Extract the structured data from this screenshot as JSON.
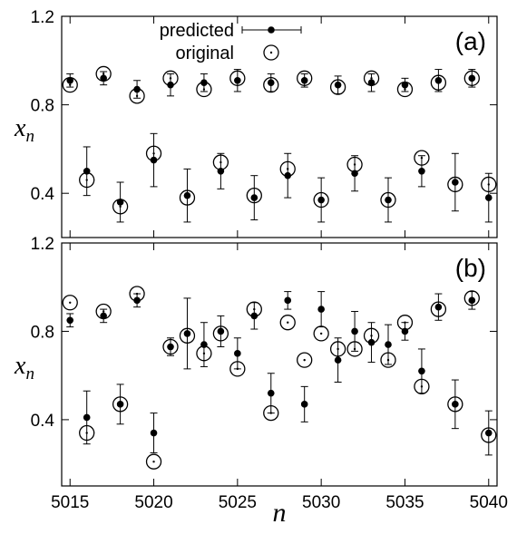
{
  "legend": {
    "predicted_label": "predicted",
    "original_label": "original"
  },
  "colors": {
    "ink": "#000000",
    "background": "#ffffff"
  },
  "chart_data": [
    {
      "type": "scatter",
      "panel_label": "(a)",
      "xlabel": "n",
      "ylabel": "x",
      "ylabel_subscript": "n",
      "xlim": [
        5014.5,
        5040.5
      ],
      "ylim": [
        0.2,
        1.2
      ],
      "xticks": [
        5015,
        5020,
        5025,
        5030,
        5035,
        5040
      ],
      "xtick_labels": [
        "5015",
        "5020",
        "5025",
        "5030",
        "5035",
        "5040"
      ],
      "yticks": [
        0.4,
        0.8,
        1.2
      ],
      "ytick_labels": [
        "0.4",
        "0.8",
        "1.2"
      ],
      "legend_position": "top-center",
      "series": [
        {
          "name": "predicted",
          "marker": "filled-dot-with-errorbar",
          "points": [
            {
              "x": 5015,
              "y": 0.91,
              "err": 0.03
            },
            {
              "x": 5016,
              "y": 0.5,
              "err": 0.11
            },
            {
              "x": 5017,
              "y": 0.92,
              "err": 0.03
            },
            {
              "x": 5018,
              "y": 0.36,
              "err": 0.09
            },
            {
              "x": 5019,
              "y": 0.87,
              "err": 0.04
            },
            {
              "x": 5020,
              "y": 0.55,
              "err": 0.12
            },
            {
              "x": 5021,
              "y": 0.89,
              "err": 0.05
            },
            {
              "x": 5022,
              "y": 0.39,
              "err": 0.12
            },
            {
              "x": 5023,
              "y": 0.9,
              "err": 0.04
            },
            {
              "x": 5024,
              "y": 0.5,
              "err": 0.08
            },
            {
              "x": 5025,
              "y": 0.91,
              "err": 0.05
            },
            {
              "x": 5026,
              "y": 0.38,
              "err": 0.1
            },
            {
              "x": 5027,
              "y": 0.9,
              "err": 0.04
            },
            {
              "x": 5028,
              "y": 0.48,
              "err": 0.1
            },
            {
              "x": 5029,
              "y": 0.91,
              "err": 0.03
            },
            {
              "x": 5030,
              "y": 0.37,
              "err": 0.1
            },
            {
              "x": 5031,
              "y": 0.89,
              "err": 0.04
            },
            {
              "x": 5032,
              "y": 0.49,
              "err": 0.08
            },
            {
              "x": 5033,
              "y": 0.9,
              "err": 0.04
            },
            {
              "x": 5034,
              "y": 0.37,
              "err": 0.1
            },
            {
              "x": 5035,
              "y": 0.89,
              "err": 0.03
            },
            {
              "x": 5036,
              "y": 0.5,
              "err": 0.07
            },
            {
              "x": 5037,
              "y": 0.91,
              "err": 0.05
            },
            {
              "x": 5038,
              "y": 0.45,
              "err": 0.13
            },
            {
              "x": 5039,
              "y": 0.92,
              "err": 0.04
            },
            {
              "x": 5040,
              "y": 0.38,
              "err": 0.11
            }
          ]
        },
        {
          "name": "original",
          "marker": "open-circle-with-dot",
          "points": [
            {
              "x": 5015,
              "y": 0.89
            },
            {
              "x": 5016,
              "y": 0.46
            },
            {
              "x": 5017,
              "y": 0.94
            },
            {
              "x": 5018,
              "y": 0.34
            },
            {
              "x": 5019,
              "y": 0.84
            },
            {
              "x": 5020,
              "y": 0.58
            },
            {
              "x": 5021,
              "y": 0.92
            },
            {
              "x": 5022,
              "y": 0.38
            },
            {
              "x": 5023,
              "y": 0.87
            },
            {
              "x": 5024,
              "y": 0.54
            },
            {
              "x": 5025,
              "y": 0.92
            },
            {
              "x": 5026,
              "y": 0.39
            },
            {
              "x": 5027,
              "y": 0.89
            },
            {
              "x": 5028,
              "y": 0.51
            },
            {
              "x": 5029,
              "y": 0.92
            },
            {
              "x": 5030,
              "y": 0.37
            },
            {
              "x": 5031,
              "y": 0.88
            },
            {
              "x": 5032,
              "y": 0.53
            },
            {
              "x": 5033,
              "y": 0.92
            },
            {
              "x": 5034,
              "y": 0.37
            },
            {
              "x": 5035,
              "y": 0.87
            },
            {
              "x": 5036,
              "y": 0.56
            },
            {
              "x": 5037,
              "y": 0.9
            },
            {
              "x": 5038,
              "y": 0.44
            },
            {
              "x": 5039,
              "y": 0.92
            },
            {
              "x": 5040,
              "y": 0.44
            }
          ]
        }
      ]
    },
    {
      "type": "scatter",
      "panel_label": "(b)",
      "xlabel": "n",
      "ylabel": "x",
      "ylabel_subscript": "n",
      "xlim": [
        5014.5,
        5040.5
      ],
      "ylim": [
        0.1,
        1.2
      ],
      "xticks": [
        5015,
        5020,
        5025,
        5030,
        5035,
        5040
      ],
      "xtick_labels": [
        "5015",
        "5020",
        "5025",
        "5030",
        "5035",
        "5040"
      ],
      "yticks": [
        0.4,
        0.8,
        1.2
      ],
      "ytick_labels": [
        "0.4",
        "0.8",
        "1.2"
      ],
      "series": [
        {
          "name": "predicted",
          "marker": "filled-dot-with-errorbar",
          "points": [
            {
              "x": 5015,
              "y": 0.85,
              "err": 0.03
            },
            {
              "x": 5016,
              "y": 0.41,
              "err": 0.12
            },
            {
              "x": 5017,
              "y": 0.87,
              "err": 0.03
            },
            {
              "x": 5018,
              "y": 0.47,
              "err": 0.09
            },
            {
              "x": 5019,
              "y": 0.94,
              "err": 0.03
            },
            {
              "x": 5020,
              "y": 0.34,
              "err": 0.09
            },
            {
              "x": 5021,
              "y": 0.73,
              "err": 0.04
            },
            {
              "x": 5022,
              "y": 0.79,
              "err": 0.16
            },
            {
              "x": 5023,
              "y": 0.74,
              "err": 0.1
            },
            {
              "x": 5024,
              "y": 0.8,
              "err": 0.07
            },
            {
              "x": 5025,
              "y": 0.7,
              "err": 0.07
            },
            {
              "x": 5026,
              "y": 0.87,
              "err": 0.06
            },
            {
              "x": 5027,
              "y": 0.52,
              "err": 0.09
            },
            {
              "x": 5028,
              "y": 0.94,
              "err": 0.04
            },
            {
              "x": 5029,
              "y": 0.47,
              "err": 0.08
            },
            {
              "x": 5030,
              "y": 0.9,
              "err": 0.08
            },
            {
              "x": 5031,
              "y": 0.67,
              "err": 0.1
            },
            {
              "x": 5032,
              "y": 0.8,
              "err": 0.09
            },
            {
              "x": 5033,
              "y": 0.75,
              "err": 0.09
            },
            {
              "x": 5034,
              "y": 0.74,
              "err": 0.09
            },
            {
              "x": 5035,
              "y": 0.8,
              "err": 0.04
            },
            {
              "x": 5036,
              "y": 0.62,
              "err": 0.1
            },
            {
              "x": 5037,
              "y": 0.91,
              "err": 0.06
            },
            {
              "x": 5038,
              "y": 0.47,
              "err": 0.11
            },
            {
              "x": 5039,
              "y": 0.94,
              "err": 0.04
            },
            {
              "x": 5040,
              "y": 0.34,
              "err": 0.1
            }
          ]
        },
        {
          "name": "original",
          "marker": "open-circle-with-dot",
          "points": [
            {
              "x": 5015,
              "y": 0.93
            },
            {
              "x": 5016,
              "y": 0.34
            },
            {
              "x": 5017,
              "y": 0.89
            },
            {
              "x": 5018,
              "y": 0.47
            },
            {
              "x": 5019,
              "y": 0.97
            },
            {
              "x": 5020,
              "y": 0.21
            },
            {
              "x": 5021,
              "y": 0.73
            },
            {
              "x": 5022,
              "y": 0.78
            },
            {
              "x": 5023,
              "y": 0.7
            },
            {
              "x": 5024,
              "y": 0.79
            },
            {
              "x": 5025,
              "y": 0.63
            },
            {
              "x": 5026,
              "y": 0.9
            },
            {
              "x": 5027,
              "y": 0.43
            },
            {
              "x": 5028,
              "y": 0.84
            },
            {
              "x": 5029,
              "y": 0.67
            },
            {
              "x": 5030,
              "y": 0.79
            },
            {
              "x": 5031,
              "y": 0.72
            },
            {
              "x": 5032,
              "y": 0.72
            },
            {
              "x": 5033,
              "y": 0.78
            },
            {
              "x": 5034,
              "y": 0.67
            },
            {
              "x": 5035,
              "y": 0.84
            },
            {
              "x": 5036,
              "y": 0.55
            },
            {
              "x": 5037,
              "y": 0.9
            },
            {
              "x": 5038,
              "y": 0.47
            },
            {
              "x": 5039,
              "y": 0.95
            },
            {
              "x": 5040,
              "y": 0.33
            }
          ]
        }
      ]
    }
  ]
}
